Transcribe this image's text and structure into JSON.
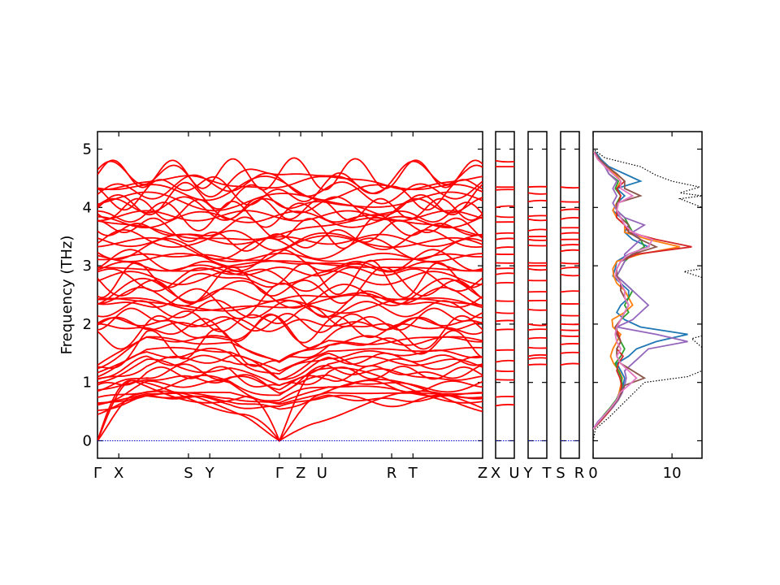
{
  "chart_data": [
    {
      "panel": "band_structure_main",
      "type": "line",
      "ylabel": "Frequency (THz)",
      "ylim": [
        -0.3,
        5.3
      ],
      "yticks": [
        0,
        1,
        2,
        3,
        4,
        5
      ],
      "ytick_labels": [
        "0",
        "1",
        "2",
        "3",
        "4",
        "5"
      ],
      "segments": [
        {
          "from": "Γ",
          "to": "X",
          "length": 0.26
        },
        {
          "from": "X",
          "to": "S",
          "length": 0.85
        },
        {
          "from": "S",
          "to": "Y",
          "length": 0.26
        },
        {
          "from": "Y",
          "to": "Γ",
          "length": 0.85
        },
        {
          "from": "Γ",
          "to": "Z",
          "length": 0.26
        },
        {
          "from": "Z",
          "to": "U",
          "length": 0.26
        },
        {
          "from": "U",
          "to": "R",
          "length": 0.85
        },
        {
          "from": "R",
          "to": "T",
          "length": 0.26
        },
        {
          "from": "T",
          "to": "Z",
          "length": 0.85
        }
      ],
      "tick_labels": [
        "Γ",
        "X",
        "S",
        "Y",
        "Γ",
        "Z",
        "U",
        "R",
        "T",
        "Z"
      ],
      "band_color": "#ff0000",
      "zero_line_color": "#0000cc",
      "band_count": 60,
      "note_values": "approximate, read from figure"
    },
    {
      "panel": "band_structure_XU",
      "type": "line",
      "tick_labels": [
        "X",
        "U"
      ],
      "levels": [
        0.6,
        0.75,
        1.05,
        1.2,
        1.35,
        1.55,
        1.9,
        2.05,
        2.2,
        2.4,
        2.7,
        2.85,
        2.95,
        3.05,
        3.2,
        3.3,
        3.45,
        3.55,
        3.75,
        3.85,
        4.0,
        4.3,
        4.35,
        4.7,
        4.8
      ]
    },
    {
      "panel": "band_structure_YT",
      "type": "line",
      "tick_labels": [
        "Y",
        "T"
      ],
      "levels": [
        1.3,
        1.4,
        1.45,
        1.6,
        1.75,
        1.9,
        2.0,
        2.25,
        2.4,
        2.55,
        2.75,
        2.95,
        3.0,
        3.05,
        3.35,
        3.45,
        3.5,
        3.6,
        3.8,
        3.85,
        4.1,
        4.25,
        4.35
      ]
    },
    {
      "panel": "band_structure_SR",
      "type": "line",
      "tick_labels": [
        "S",
        "R"
      ],
      "levels": [
        1.3,
        1.5,
        1.65,
        1.8,
        1.9,
        2.0,
        2.15,
        2.35,
        2.55,
        2.85,
        2.95,
        3.05,
        3.25,
        3.35,
        3.45,
        3.55,
        3.65,
        3.8,
        3.95,
        4.1,
        4.35
      ]
    },
    {
      "panel": "dos",
      "type": "line",
      "xlim": [
        0,
        13.8
      ],
      "xticks": [
        0,
        10
      ],
      "xtick_labels": [
        "0",
        "10"
      ],
      "total_dos_color": "#000000",
      "series": [
        {
          "color": "#1f77b4",
          "x": [
            0,
            0.6,
            1.5,
            2.5,
            3.2,
            3.6,
            3.8,
            4.0,
            3.5,
            3.0,
            4.5,
            5.5,
            8.0,
            12.0,
            6.0,
            4.0,
            3.0,
            3.5,
            4.5,
            4.5,
            3.5,
            2.5,
            2.8,
            3.0,
            4.5,
            7.0,
            5.0,
            4.0,
            4.5,
            3.5,
            2.5,
            3.0,
            4.0,
            3.0,
            6.0,
            4.0,
            2.0,
            1.0,
            0.3
          ]
        },
        {
          "color": "#ff7f0e",
          "x": [
            0,
            0.8,
            1.6,
            2.4,
            3.0,
            3.3,
            3.5,
            3.7,
            3.3,
            2.6,
            2.2,
            2.5,
            3.0,
            3.5,
            2.5,
            2.4,
            4.0,
            5.0,
            4.5,
            4.0,
            3.0,
            2.6,
            2.5,
            3.0,
            6.0,
            11.0,
            7.0,
            4.0,
            4.0,
            3.0,
            2.5,
            3.0,
            3.5,
            3.0,
            3.5,
            2.8,
            1.5,
            0.6,
            0.1
          ]
        },
        {
          "color": "#2ca02c",
          "x": [
            0,
            0.7,
            1.4,
            2.2,
            2.9,
            3.4,
            3.7,
            3.6,
            3.2,
            2.8,
            3.5,
            4.0,
            3.5,
            3.0,
            3.0,
            3.5,
            4.5,
            4.0,
            4.5,
            5.0,
            4.0,
            3.0,
            3.5,
            4.0,
            5.0,
            6.5,
            6.0,
            5.0,
            4.5,
            4.0,
            3.0,
            3.0,
            3.5,
            2.8,
            3.2,
            2.0,
            1.5,
            0.8,
            0.2
          ]
        },
        {
          "color": "#d62728",
          "x": [
            0,
            0.9,
            1.7,
            2.5,
            3.1,
            3.5,
            3.6,
            3.4,
            3.0,
            3.2,
            3.8,
            3.0,
            3.5,
            3.2,
            2.8,
            3.5,
            4.0,
            4.5,
            4.0,
            3.5,
            3.5,
            3.0,
            3.0,
            3.5,
            5.5,
            12.5,
            8.0,
            4.5,
            4.0,
            3.0,
            3.0,
            3.2,
            3.5,
            3.0,
            4.0,
            3.0,
            1.8,
            0.8,
            0.2
          ]
        },
        {
          "color": "#9467bd",
          "x": [
            0,
            0.6,
            1.5,
            2.5,
            3.2,
            3.7,
            4.0,
            4.2,
            4.0,
            5.0,
            6.0,
            7.0,
            12.0,
            8.0,
            3.0,
            5.0,
            6.0,
            7.0,
            6.0,
            5.0,
            4.0,
            3.0,
            3.5,
            4.0,
            4.0,
            5.0,
            6.0,
            5.0,
            6.5,
            4.0,
            3.0,
            2.5,
            3.0,
            2.5,
            3.0,
            2.0,
            1.5,
            0.8,
            0.2
          ]
        },
        {
          "color": "#8c564b",
          "x": [
            0,
            0.8,
            1.6,
            2.4,
            3.1,
            3.6,
            4.0,
            6.5,
            5.0,
            3.5,
            3.0,
            3.0,
            3.5,
            3.0,
            2.8,
            3.5,
            4.0,
            4.5,
            4.0,
            3.5,
            3.5,
            3.0,
            3.0,
            3.5,
            5.0,
            8.0,
            6.0,
            4.5,
            4.5,
            3.5,
            3.0,
            3.0,
            6.0,
            4.0,
            4.0,
            3.0,
            1.8,
            0.8,
            0.2
          ]
        },
        {
          "color": "#e377c2",
          "x": [
            0,
            0.7,
            1.5,
            2.3,
            3.0,
            3.4,
            4.5,
            5.5,
            4.5,
            3.5,
            3.0,
            3.5,
            3.0,
            2.8,
            3.0,
            3.5,
            4.0,
            4.5,
            4.0,
            4.0,
            3.5,
            2.8,
            3.0,
            3.5,
            4.5,
            7.0,
            7.5,
            5.0,
            4.0,
            3.5,
            3.0,
            3.2,
            5.0,
            3.5,
            3.5,
            2.5,
            1.5,
            0.6,
            0.1
          ]
        }
      ],
      "total": {
        "y": [
          0,
          0.2,
          0.4,
          0.6,
          0.8,
          1.0,
          1.1,
          1.2,
          1.4,
          1.6,
          1.75,
          1.8,
          1.9,
          2.0,
          2.2,
          2.4,
          2.6,
          2.8,
          2.9,
          2.95,
          3.0,
          3.2,
          3.4,
          3.5,
          3.6,
          3.8,
          4.0,
          4.15,
          4.2,
          4.25,
          4.35,
          4.45,
          4.55,
          4.7,
          4.85,
          5.0
        ],
        "x": [
          0,
          0.3,
          2.0,
          3.5,
          5.0,
          6.5,
          12.0,
          13.8,
          13.8,
          13.8,
          12.5,
          13.8,
          13.8,
          13.8,
          13.8,
          13.8,
          13.8,
          13.8,
          11.5,
          13.8,
          13.8,
          13.8,
          13.8,
          13.8,
          13.8,
          13.8,
          13.8,
          11.0,
          13.8,
          11.0,
          13.5,
          10.0,
          8.0,
          6.0,
          1.5,
          0
        ]
      }
    }
  ]
}
